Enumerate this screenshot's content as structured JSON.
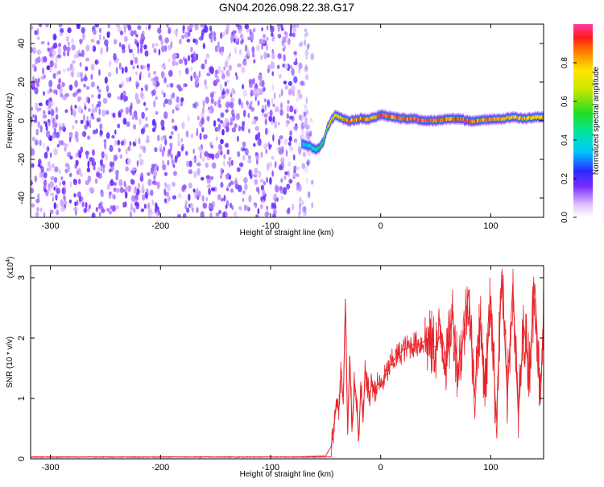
{
  "title": "GN04.2026.098.22.38.G17",
  "colors": {
    "snr_line": "#e8242b",
    "spectro_scatter": "#7a2cff",
    "ridge_mid": "#00e6a0",
    "ridge_peak": "#ff2a2a",
    "background": "#ffffff"
  },
  "chart_data": [
    {
      "type": "heatmap",
      "title": "",
      "xlabel": "Height of straight line (km)",
      "ylabel": "Frequency (Hz)",
      "xlim": [
        -318,
        148
      ],
      "ylim": [
        -50,
        50
      ],
      "x_ticks": [
        "-300",
        "-200",
        "-100",
        "0",
        "100"
      ],
      "x_tick_values": [
        -300,
        -200,
        -100,
        0,
        100
      ],
      "y_ticks": [
        "-40",
        "-20",
        "0",
        "20",
        "40"
      ],
      "y_tick_values": [
        -40,
        -20,
        0,
        20,
        40
      ],
      "noise_region_x": [
        -318,
        -62
      ],
      "ridge": {
        "x": [
          -72,
          -66,
          -62,
          -58,
          -55,
          -52,
          -49,
          -45,
          -41,
          -35,
          -28,
          -20,
          -12,
          -5,
          0,
          10,
          20,
          30,
          40,
          50,
          60,
          70,
          80,
          90,
          100,
          110,
          120,
          130,
          140,
          148
        ],
        "y": [
          -12,
          -13,
          -14,
          -15,
          -13,
          -10,
          -4,
          1,
          3,
          1,
          0,
          1,
          1,
          2,
          3,
          2,
          1,
          1,
          0,
          0,
          1,
          1,
          0,
          0,
          1,
          1,
          2,
          1,
          2,
          2
        ],
        "peak_amplitude": [
          0.35,
          0.4,
          0.45,
          0.5,
          0.5,
          0.55,
          0.6,
          0.75,
          0.8,
          0.85,
          0.9,
          0.9,
          0.85,
          0.9,
          0.95,
          0.9,
          0.9,
          0.95,
          0.95,
          0.9,
          0.9,
          0.95,
          0.9,
          0.9,
          0.85,
          0.85,
          0.8,
          0.85,
          0.8,
          0.8
        ]
      },
      "colorbar": {
        "label": "Normalized spectral amplitude",
        "range": [
          0,
          1
        ],
        "ticks": [
          "0.0",
          "0.2",
          "0.4",
          "0.6",
          "0.8"
        ],
        "tick_values": [
          0,
          0.2,
          0.4,
          0.6,
          0.8
        ]
      }
    },
    {
      "type": "line",
      "title": "",
      "xlabel": "Height of straight line (km)",
      "ylabel": "SNR (10 * v/v)",
      "y_multiplier": "(x10",
      "y_multiplier_exp": "4",
      "y_multiplier_close": ")",
      "xlim": [
        -318,
        148
      ],
      "ylim": [
        0,
        3.2
      ],
      "x_ticks": [
        "-300",
        "-200",
        "-100",
        "0",
        "100"
      ],
      "x_tick_values": [
        -300,
        -200,
        -100,
        0,
        100
      ],
      "y_ticks": [
        "0",
        "1",
        "2",
        "3"
      ],
      "y_tick_values": [
        0,
        1,
        2,
        3
      ],
      "series": [
        {
          "x": [
            -318,
            -250,
            -150,
            -80,
            -50,
            -45,
            -42,
            -40,
            -38,
            -36,
            -34,
            -32,
            -30,
            -28,
            -26,
            -24,
            -22,
            -20,
            -18,
            -16,
            -14,
            -12,
            -10,
            -8,
            -6,
            -4,
            -2,
            0,
            5,
            10,
            15,
            20,
            25,
            30,
            35,
            40,
            45,
            50,
            55,
            60,
            65,
            70,
            75,
            80,
            85,
            90,
            95,
            100,
            105,
            110,
            115,
            120,
            125,
            130,
            135,
            140,
            145,
            148
          ],
          "y": [
            0.03,
            0.03,
            0.03,
            0.03,
            0.05,
            0.2,
            0.6,
            1.0,
            0.8,
            1.5,
            0.9,
            2.65,
            0.4,
            1.7,
            0.5,
            1.3,
            1.0,
            0.3,
            1.2,
            0.6,
            1.5,
            1.2,
            1.0,
            1.3,
            1.1,
            1.2,
            1.25,
            1.2,
            1.4,
            1.6,
            1.7,
            1.8,
            1.85,
            1.9,
            1.9,
            1.95,
            1.9,
            1.85,
            2.1,
            1.6,
            2.4,
            1.5,
            2.0,
            2.8,
            1.0,
            2.3,
            1.2,
            2.7,
            0.6,
            3.1,
            1.0,
            2.9,
            0.7,
            2.2,
            1.5,
            2.9,
            0.9,
            2.4
          ]
        }
      ]
    }
  ]
}
